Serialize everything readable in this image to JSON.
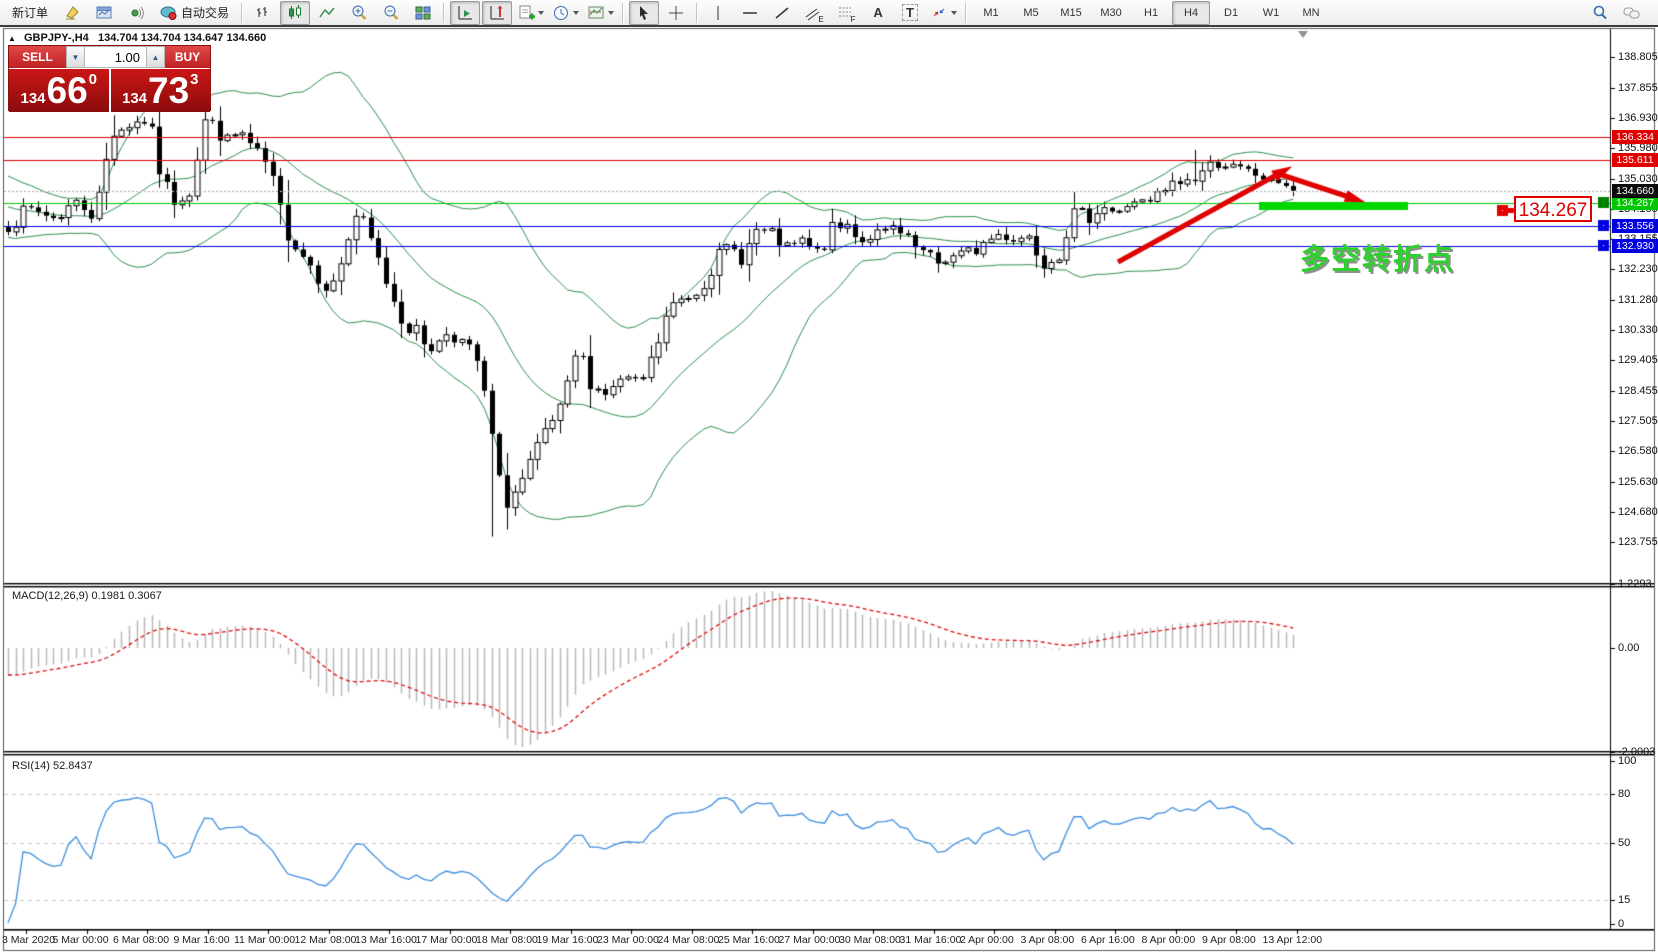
{
  "toolbar": {
    "new_order": "新订单",
    "autotrading": "自动交易",
    "channel_sub": "E",
    "fibo_sub": "F",
    "text_tool": "A",
    "label_tool": "T",
    "timeframes": [
      "M1",
      "M5",
      "M15",
      "M30",
      "H1",
      "H4",
      "D1",
      "W1",
      "MN"
    ],
    "active_timeframe": "H4"
  },
  "title": {
    "collapse": "▲",
    "symbol_period": "GBPJPY-,H4",
    "quote": "134.704 134.704 134.647 134.660"
  },
  "trade_panel": {
    "sell": "SELL",
    "buy": "BUY",
    "volume": "1.00",
    "sell_price": {
      "small": "134",
      "big": "66",
      "sup": "0"
    },
    "buy_price": {
      "small": "134",
      "big": "73",
      "sup": "3"
    }
  },
  "annotations": {
    "turning_point": "多空转折点",
    "price_label": "134.267"
  },
  "chart_data": {
    "type": "candlestick",
    "symbol": "GBPJPY-",
    "timeframe": "H4",
    "ohlc": {
      "open": "134.704",
      "high": "134.704",
      "low": "134.647",
      "close": "134.660"
    },
    "indicators": [
      "Bollinger Bands",
      "MACD(12,26,9)",
      "RSI(14)"
    ],
    "y_axis_ticks": [
      "138.805",
      "137.855",
      "136.930",
      "135.980",
      "135.030",
      "134.105",
      "133.155",
      "132.230",
      "131.280",
      "130.330",
      "129.405",
      "128.455",
      "127.505",
      "126.580",
      "125.630",
      "124.680",
      "123.755"
    ],
    "hlines": [
      {
        "price": 136.334,
        "label": "136.334",
        "color": "#e00000"
      },
      {
        "price": 135.611,
        "label": "135.611",
        "color": "#e00000"
      },
      {
        "price": 134.267,
        "label": "134.267",
        "color": "#00c800"
      },
      {
        "price": 133.556,
        "label": "133.556",
        "color": "#0000e0"
      },
      {
        "price": 132.93,
        "label": "132.930",
        "color": "#0000e0"
      }
    ],
    "current_price": {
      "value": 134.66,
      "label": "134.660"
    },
    "price_path": [
      [
        8,
        133.6
      ],
      [
        30,
        134.1
      ],
      [
        55,
        133.8
      ],
      [
        75,
        134.35
      ],
      [
        95,
        133.9
      ],
      [
        112,
        136.5
      ],
      [
        128,
        136.7
      ],
      [
        148,
        136.9
      ],
      [
        160,
        135.2
      ],
      [
        172,
        134.35
      ],
      [
        190,
        134.7
      ],
      [
        205,
        136.9
      ],
      [
        215,
        136.6
      ],
      [
        228,
        136.2
      ],
      [
        240,
        136.5
      ],
      [
        255,
        135.8
      ],
      [
        268,
        135.4
      ],
      [
        285,
        133.5
      ],
      [
        300,
        132.8
      ],
      [
        315,
        132.2
      ],
      [
        330,
        131.4
      ],
      [
        342,
        132.6
      ],
      [
        357,
        134.0
      ],
      [
        372,
        133.0
      ],
      [
        388,
        131.7
      ],
      [
        403,
        130.6
      ],
      [
        418,
        130.2
      ],
      [
        432,
        129.7
      ],
      [
        448,
        130.3
      ],
      [
        463,
        129.9
      ],
      [
        478,
        129.3
      ],
      [
        492,
        127.0
      ],
      [
        503,
        124.9
      ],
      [
        518,
        125.4
      ],
      [
        533,
        126.3
      ],
      [
        548,
        127.3
      ],
      [
        563,
        127.9
      ],
      [
        578,
        129.9
      ],
      [
        592,
        128.6
      ],
      [
        608,
        128.3
      ],
      [
        623,
        128.9
      ],
      [
        638,
        128.5
      ],
      [
        652,
        129.4
      ],
      [
        668,
        130.9
      ],
      [
        682,
        131.3
      ],
      [
        698,
        131.6
      ],
      [
        713,
        132.4
      ],
      [
        728,
        132.9
      ],
      [
        743,
        132.6
      ],
      [
        758,
        133.5
      ],
      [
        772,
        133.2
      ],
      [
        788,
        132.9
      ],
      [
        802,
        133.1
      ],
      [
        818,
        132.7
      ],
      [
        832,
        133.4
      ],
      [
        848,
        133.6
      ],
      [
        862,
        133.1
      ],
      [
        878,
        133.3
      ],
      [
        892,
        133.5
      ],
      [
        908,
        133.0
      ],
      [
        922,
        132.7
      ],
      [
        938,
        132.4
      ],
      [
        952,
        132.6
      ],
      [
        968,
        132.7
      ],
      [
        982,
        133.0
      ],
      [
        998,
        133.3
      ],
      [
        1012,
        133.1
      ],
      [
        1028,
        133.3
      ],
      [
        1042,
        132.5
      ],
      [
        1058,
        132.7
      ],
      [
        1072,
        133.9
      ],
      [
        1088,
        133.8
      ],
      [
        1102,
        134.2
      ],
      [
        1118,
        133.9
      ],
      [
        1132,
        134.4
      ],
      [
        1148,
        134.2
      ],
      [
        1162,
        134.6
      ],
      [
        1178,
        134.9
      ],
      [
        1192,
        135.0
      ],
      [
        1208,
        135.4
      ],
      [
        1222,
        135.5
      ],
      [
        1238,
        135.3
      ],
      [
        1252,
        135.2
      ],
      [
        1268,
        135.0
      ],
      [
        1282,
        134.9
      ],
      [
        1293,
        134.66
      ]
    ],
    "x_axis_dates": [
      "3 Mar 2020",
      "5 Mar 00:00",
      "6 Mar 08:00",
      "9 Mar 16:00",
      "11 Mar 00:00",
      "12 Mar 08:00",
      "13 Mar 16:00",
      "17 Mar 00:00",
      "18 Mar 08:00",
      "19 Mar 16:00",
      "23 Mar 00:00",
      "24 Mar 08:00",
      "25 Mar 16:00",
      "27 Mar 00:00",
      "30 Mar 08:00",
      "31 Mar 16:00",
      "2 Apr 00:00",
      "3 Apr 08:00",
      "6 Apr 16:00",
      "8 Apr 00:00",
      "9 Apr 08:00",
      "13 Apr 12:00"
    ],
    "macd": {
      "label": "MACD(12,26,9) 0.1981 0.3067",
      "ticks": [
        "1.2293",
        "0.00",
        "-2.0003"
      ]
    },
    "rsi": {
      "label": "RSI(14) 52.8437",
      "ticks": [
        100,
        80,
        50,
        15,
        0
      ],
      "levels": [
        80,
        50,
        15
      ]
    },
    "colors": {
      "bull": "#ffffff",
      "bear": "#000000",
      "bollinger": "#2f9150",
      "macd_hist": "#b8b8b8",
      "macd_signal": "#e01010",
      "rsi_line": "#3f8fdf",
      "trend_arrow": "#e00000",
      "zone": "#00d800",
      "red_line": "#e00000",
      "green_line": "#00c800",
      "blue_line": "#0000e0"
    }
  }
}
